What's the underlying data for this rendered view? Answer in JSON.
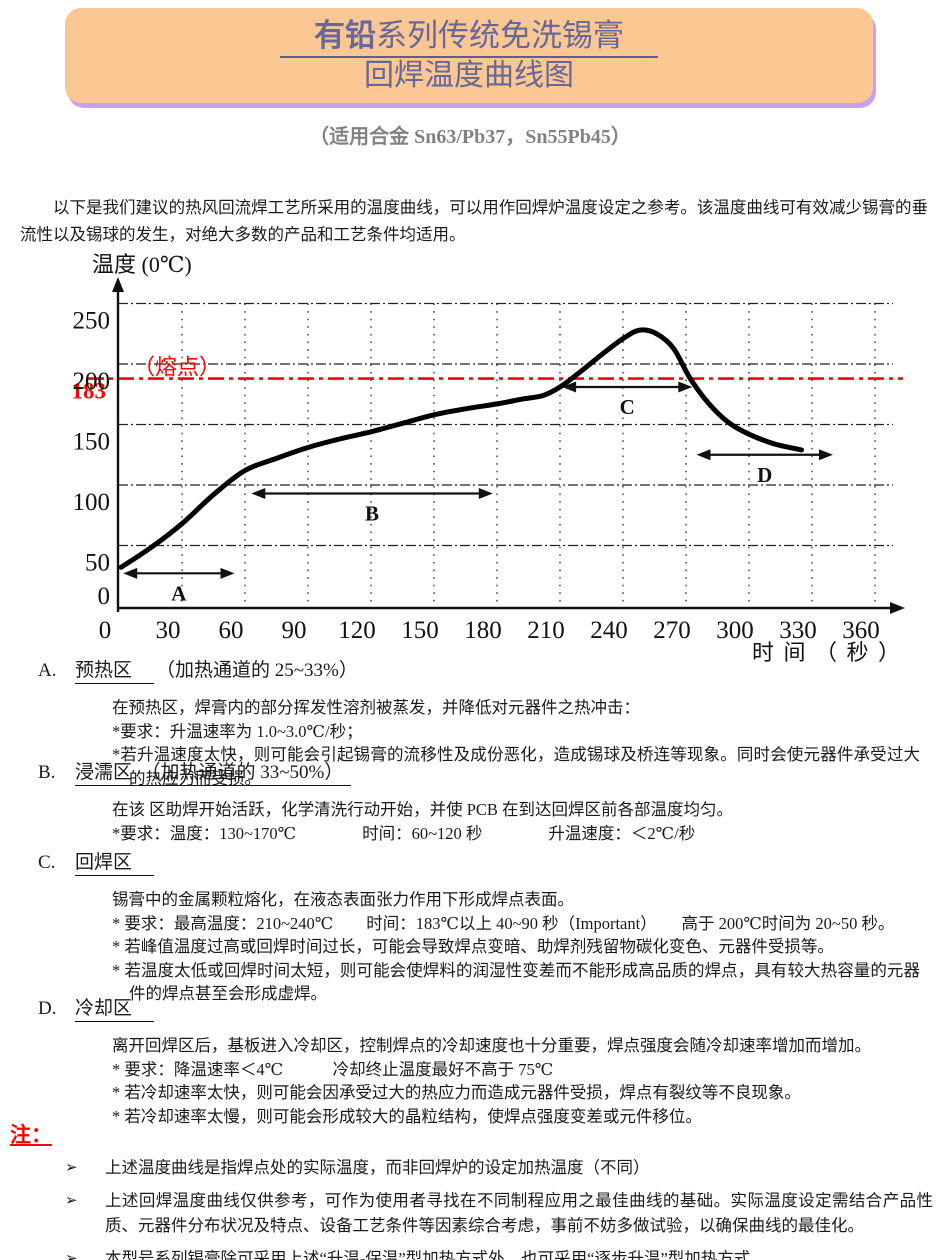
{
  "header": {
    "title_line1_bold": "有铅",
    "title_line1_rest": "系列传统免洗锡膏",
    "title_line2": "回焊温度曲线图",
    "subtitle": "（适用合金 Sn63/Pb37，Sn55Pb45）"
  },
  "colors": {
    "banner_bg": "#FBC893",
    "banner_shadow": "#C9A0F0",
    "title_text": "#67679A",
    "subtitle_text": "#828282",
    "melting_line": "#FF0000",
    "notes_label": "#FF0000",
    "curve": "#000000"
  },
  "intro": "以下是我们建议的热风回流焊工艺所采用的温度曲线，可以用作回焊炉温度设定之参考。该温度曲线可有效减少锡膏的垂流性以及锡球的发生，对绝大多数的产品和工艺条件均适用。",
  "chart_data": {
    "type": "line",
    "title": "",
    "xlabel": "时 间 （ 秒 ）",
    "ylabel": "温度 (0℃)",
    "xlim": [
      0,
      390
    ],
    "ylim": [
      0,
      275
    ],
    "x_ticks": [
      0,
      30,
      60,
      90,
      120,
      150,
      180,
      210,
      240,
      270,
      300,
      330,
      360
    ],
    "y_ticks": [
      0,
      50,
      100,
      150,
      200,
      250
    ],
    "grid": "horizontal dash-dot at 50–250, vertical dotted every 30 s",
    "legend": "none",
    "melting_point": {
      "value": 183,
      "tick_label": "183",
      "line_label": "（熔点）",
      "color": "#FF0000"
    },
    "series": [
      {
        "name": "reflow-temperature-profile",
        "x": [
          1,
          15,
          30,
          45,
          60,
          75,
          90,
          105,
          120,
          135,
          150,
          165,
          180,
          192,
          202,
          210,
          220,
          230,
          240,
          248,
          256,
          264,
          272,
          281,
          290,
          300,
          312,
          325
        ],
        "y": [
          32,
          48,
          68,
          92,
          112,
          122,
          131,
          138,
          144,
          151,
          158,
          163,
          167,
          171,
          174,
          181,
          194,
          208,
          221,
          228,
          225,
          213,
          188,
          167,
          152,
          142,
          134,
          129
        ]
      }
    ],
    "zone_arrows": [
      {
        "label": "A",
        "from_s": 2,
        "to_s": 55,
        "at_temp": 27
      },
      {
        "label": "B",
        "from_s": 63,
        "to_s": 178,
        "at_temp": 93
      },
      {
        "label": "C",
        "from_s": 211,
        "to_s": 273,
        "at_temp": 181
      },
      {
        "label": "D",
        "from_s": 275,
        "to_s": 340,
        "at_temp": 125
      }
    ]
  },
  "sections": [
    {
      "letter": "A.",
      "heading": "预热区",
      "paren": "（加热通道的 25~33%）",
      "lines": [
        "在预热区，焊膏内的部分挥发性溶剂被蒸发，并降低对元器件之热冲击：",
        "*要求：升温速率为 1.0~3.0℃/秒；",
        "*若升温速度太快，则可能会引起锡膏的流移性及成份恶化，造成锡球及桥连等现象。同时会使元器件承受过大的热应力而受损。"
      ]
    },
    {
      "letter": "B.",
      "heading": "浸濡区　（加热通道的 33~50%）",
      "paren": "",
      "lines": [
        "在该 区助焊开始活跃，化学清洗行动开始，并使 PCB 在到达回焊区前各部温度均匀。",
        "*要求：温度：130~170℃　　　　时间：60~120 秒　　　　升温速度：＜2℃/秒"
      ]
    },
    {
      "letter": "C.",
      "heading": "回焊区",
      "paren": "",
      "lines": [
        "锡膏中的金属颗粒熔化，在液态表面张力作用下形成焊点表面。",
        "* 要求：最高温度：210~240℃　　时间：183℃以上 40~90 秒（Important）　　高于 200℃时间为 20~50 秒。",
        "* 若峰值温度过高或回焊时间过长，可能会导致焊点变暗、助焊剂残留物碳化变色、元器件受损等。",
        "* 若温度太低或回焊时间太短，则可能会使焊料的润湿性变差而不能形成高品质的焊点，具有较大热容量的元器件的焊点甚至会形成虚焊。"
      ]
    },
    {
      "letter": "D.",
      "heading": "冷却区",
      "paren": "",
      "lines": [
        "离开回焊区后，基板进入冷却区，控制焊点的冷却速度也十分重要，焊点强度会随冷却速率增加而增加。",
        "* 要求：降温速率＜4℃　　　冷却终止温度最好不高于 75℃",
        "* 若冷却速率太快，则可能会因承受过大的热应力而造成元器件受损，焊点有裂纹等不良现象。",
        "* 若冷却速率太慢，则可能会形成较大的晶粒结构，使焊点强度变差或元件移位。"
      ]
    }
  ],
  "notes": {
    "label": "注：",
    "bullet_icon": "➢",
    "items": [
      "上述温度曲线是指焊点处的实际温度，而非回焊炉的设定加热温度（不同）",
      "上述回焊温度曲线仅供参考，可作为使用者寻找在不同制程应用之最佳曲线的基础。实际温度设定需结合产品性质、元器件分布状况及特点、设备工艺条件等因素综合考虑，事前不妨多做试验，以确保曲线的最佳化。",
      "本型号系列锡膏除可采用上述“升温-保温”型加热方式外，也可采用“逐步升温”型加热方式。"
    ]
  }
}
